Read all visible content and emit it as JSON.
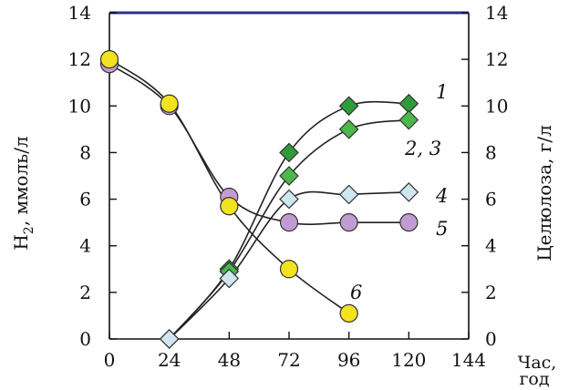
{
  "chart_data": {
    "type": "line",
    "x_ticks": [
      "0",
      "24",
      "48",
      "72",
      "96",
      "120",
      "144"
    ],
    "x_range": [
      0,
      144
    ],
    "y_left_ticks": [
      "0",
      "2",
      "4",
      "6",
      "8",
      "10",
      "12",
      "14"
    ],
    "y_left_range": [
      0,
      14
    ],
    "y_right_ticks": [
      "0",
      "2",
      "4",
      "6",
      "8",
      "10",
      "12",
      "14"
    ],
    "y_right_range": [
      0,
      14
    ],
    "ylabel_left_main": "H",
    "ylabel_left_sub": "2",
    "ylabel_left_rest": ", ммоль/л",
    "ylabel_right": "Целюлоза, г/л",
    "xlabel_line1": "Час,",
    "xlabel_line2": "год",
    "grid": false,
    "series": [
      {
        "name": "1",
        "label": "1",
        "marker": "diamond",
        "color": "#2e9b3a",
        "x": [
          24,
          48,
          72,
          96,
          120
        ],
        "y": [
          0,
          3.0,
          8.0,
          10.0,
          10.1
        ]
      },
      {
        "name": "2, 3",
        "label": "2, 3",
        "marker": "diamond",
        "color": "#4cb84a",
        "x": [
          24,
          48,
          72,
          96,
          120
        ],
        "y": [
          0,
          2.9,
          7.0,
          9.0,
          9.4
        ]
      },
      {
        "name": "4",
        "label": "4",
        "marker": "diamond",
        "color": "#cfe6f0",
        "x": [
          24,
          48,
          72,
          96,
          120
        ],
        "y": [
          0,
          2.6,
          6.0,
          6.2,
          6.3
        ]
      },
      {
        "name": "5",
        "label": "5",
        "marker": "circle",
        "color": "#c39bd3",
        "x": [
          0,
          24,
          48,
          72,
          96,
          120
        ],
        "y": [
          11.8,
          10.0,
          6.1,
          5.0,
          5.0,
          5.0
        ]
      },
      {
        "name": "6",
        "label": "6",
        "marker": "circle",
        "color": "#f2e21f",
        "x": [
          0,
          24,
          48,
          72,
          96
        ],
        "y": [
          12.0,
          10.1,
          5.7,
          3.0,
          1.1
        ]
      }
    ],
    "colors": {
      "axis": "#111111",
      "top_border": "#2b2f8a",
      "line": "#222222"
    }
  }
}
